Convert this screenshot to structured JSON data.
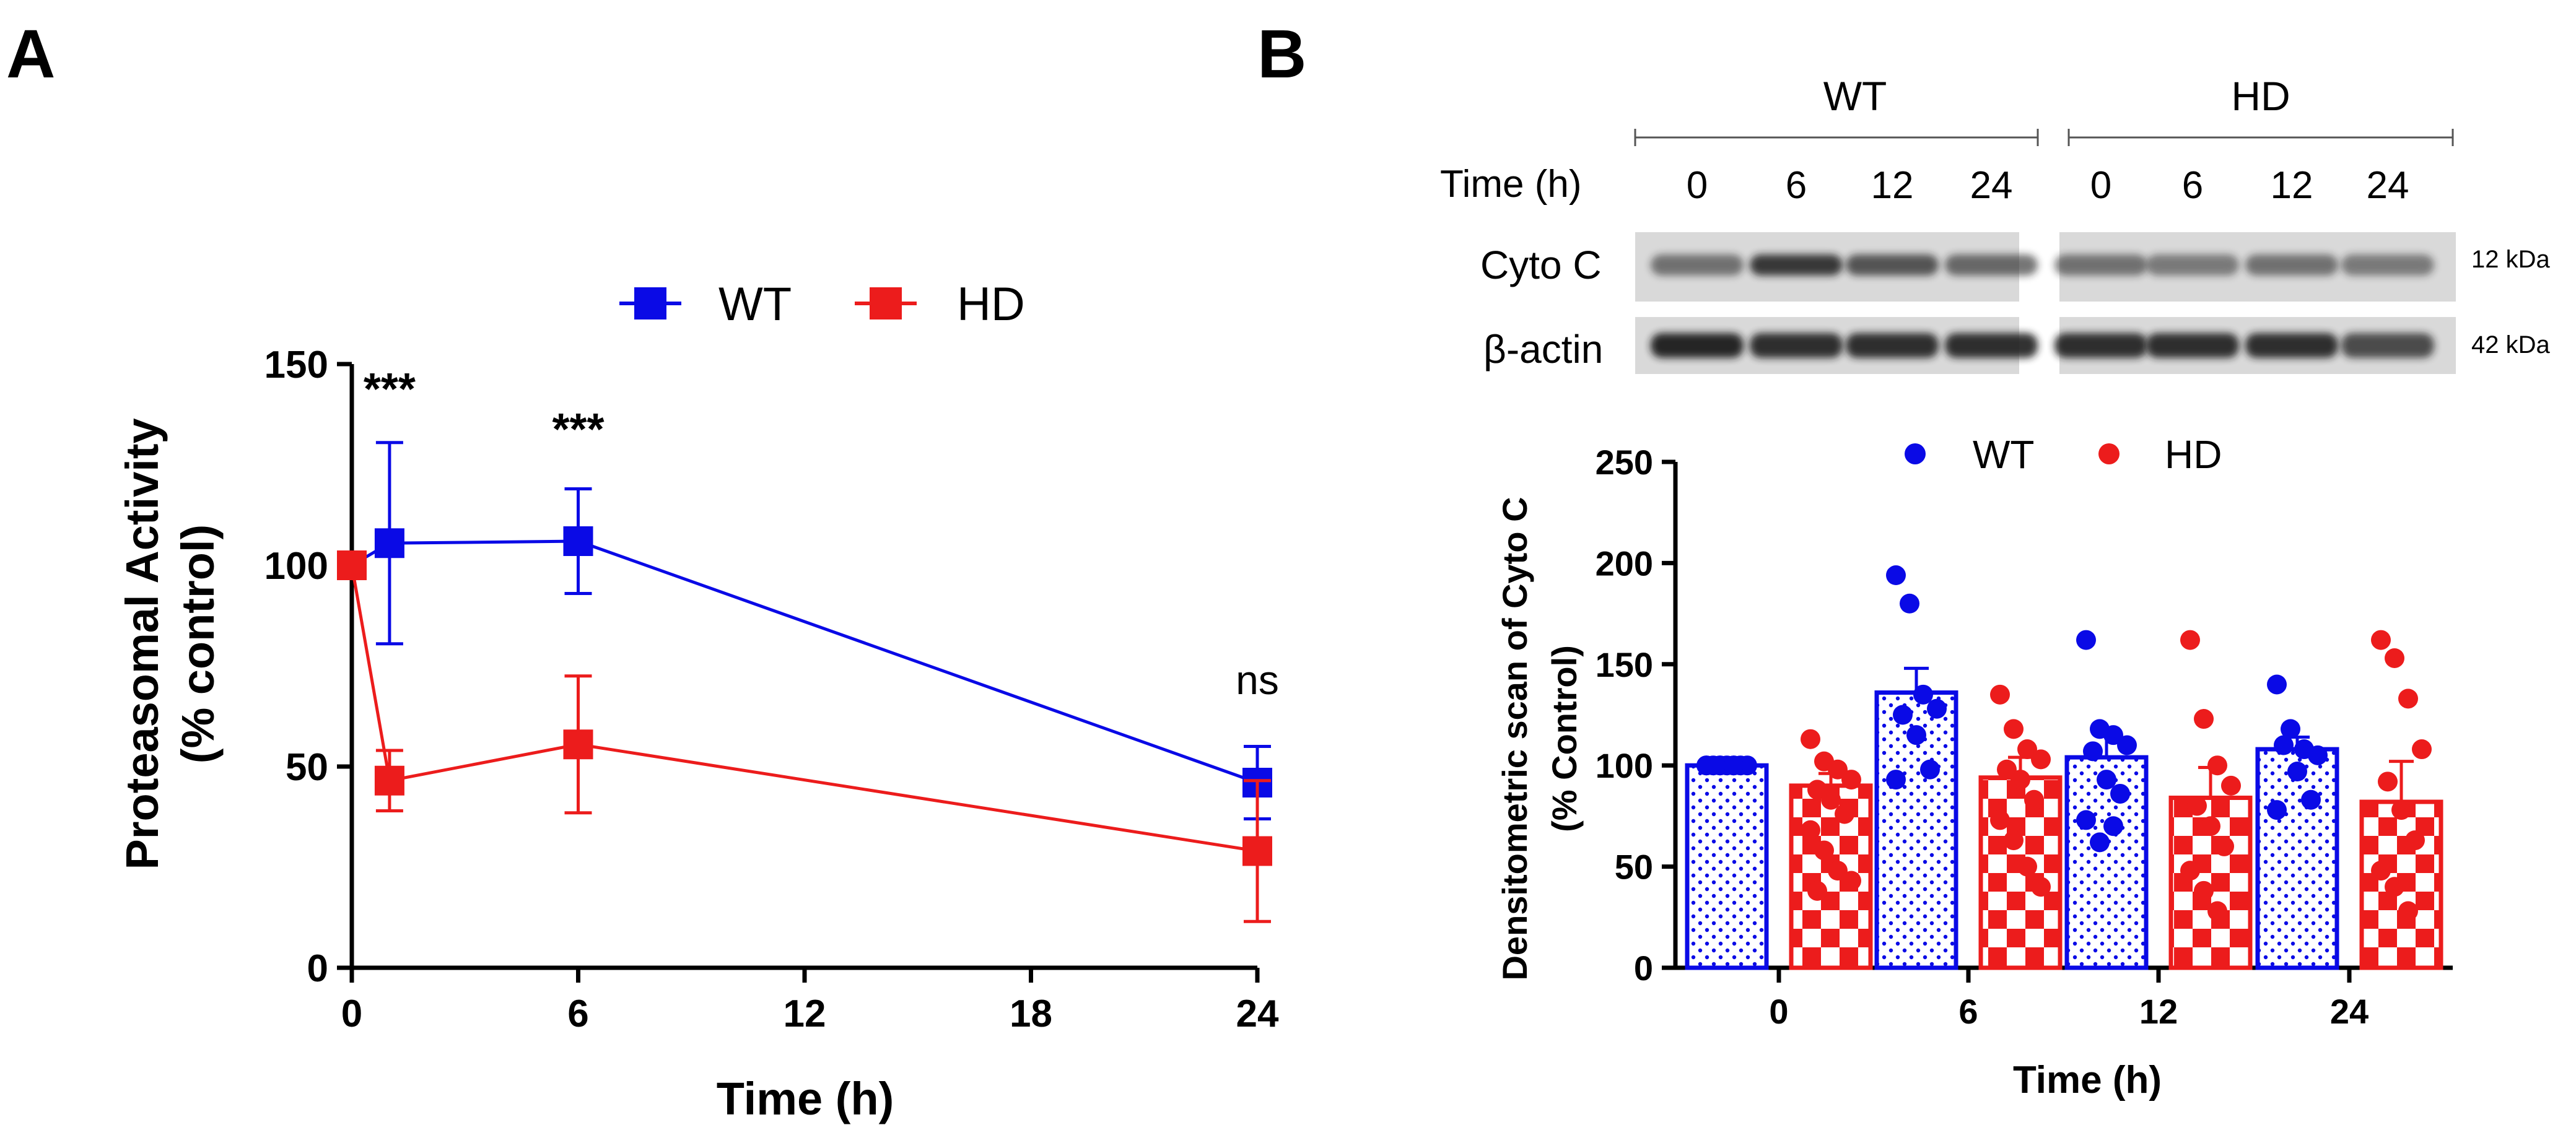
{
  "colors": {
    "wt": "#0a0ae6",
    "hd": "#ec1c1c",
    "blot_bg": "#d9d9d9",
    "band": "#1e1e1e"
  },
  "panel_a": {
    "letter": "A",
    "legend": [
      "WT",
      "HD"
    ],
    "significance": [
      "***",
      "***",
      "ns"
    ]
  },
  "panel_b": {
    "letter": "B",
    "blot": {
      "group_labels": [
        "WT",
        "HD"
      ],
      "time_label": "Time (h)",
      "lane_times": [
        "0",
        "6",
        "12",
        "24",
        "0",
        "6",
        "12",
        "24"
      ],
      "rows": [
        {
          "label": "Cyto C",
          "kda": "12 kDa",
          "intensity": [
            0.55,
            0.85,
            0.7,
            0.6,
            0.55,
            0.5,
            0.55,
            0.5
          ]
        },
        {
          "label": "β-actin",
          "kda": "42 kDa",
          "intensity": [
            0.95,
            0.9,
            0.9,
            0.9,
            0.9,
            0.9,
            0.9,
            0.75
          ]
        }
      ]
    },
    "legend": [
      "WT",
      "HD"
    ]
  },
  "chart_data": [
    {
      "type": "line",
      "title": "",
      "xlabel": "Time (h)",
      "ylabel": "Proteasomal Activity",
      "ylabel2": "(% control)",
      "xlim": [
        0,
        24
      ],
      "ylim": [
        0,
        150
      ],
      "xticks": [
        0,
        6,
        12,
        18,
        24
      ],
      "yticks": [
        0,
        50,
        100,
        150
      ],
      "legend_position": "top-center",
      "series": [
        {
          "name": "WT",
          "x": [
            0,
            1,
            6,
            24
          ],
          "y": [
            100,
            105.5,
            106,
            46
          ],
          "err": [
            0,
            25,
            13,
            9
          ]
        },
        {
          "name": "HD",
          "x": [
            0,
            1,
            6,
            24
          ],
          "y": [
            100,
            46.5,
            55.5,
            29
          ],
          "err": [
            0,
            7.5,
            17,
            17.5
          ]
        }
      ],
      "annotations": [
        {
          "x": 1,
          "y": 140,
          "text": "***"
        },
        {
          "x": 6,
          "y": 130,
          "text": "***"
        },
        {
          "x": 24,
          "y": 68,
          "text": "ns"
        }
      ]
    },
    {
      "type": "bar",
      "title": "",
      "xlabel": "Time (h)",
      "ylabel": "Densitometric scan of Cyto C",
      "ylabel2": "(% Control)",
      "categories": [
        "0",
        "6",
        "12",
        "24"
      ],
      "ylim": [
        0,
        250
      ],
      "yticks": [
        0,
        50,
        100,
        150,
        200,
        250
      ],
      "legend_position": "top-center",
      "series": [
        {
          "name": "WT",
          "values": [
            100,
            136,
            104,
            108
          ],
          "sem": [
            1,
            12,
            11,
            6
          ],
          "points": [
            [
              100,
              100,
              100,
              100,
              100,
              100,
              100,
              100,
              100,
              100
            ],
            [
              194,
              180,
              135,
              128,
              125,
              115,
              98,
              93
            ],
            [
              162,
              118,
              115,
              110,
              107,
              93,
              86,
              73,
              62,
              70
            ],
            [
              140,
              118,
              108,
              105,
              110,
              97,
              83,
              78
            ]
          ]
        },
        {
          "name": "HD",
          "values": [
            90,
            94,
            84,
            82
          ],
          "sem": [
            6,
            10,
            15,
            20
          ],
          "points": [
            [
              113,
              102,
              98,
              93,
              88,
              83,
              76,
              68,
              58,
              48,
              43,
              38
            ],
            [
              135,
              118,
              108,
              103,
              98,
              93,
              83,
              73,
              63,
              50,
              40
            ],
            [
              162,
              123,
              100,
              90,
              80,
              70,
              60,
              48,
              38,
              28
            ],
            [
              162,
              153,
              133,
              108,
              92,
              78,
              63,
              48,
              40,
              28
            ]
          ]
        }
      ]
    }
  ]
}
